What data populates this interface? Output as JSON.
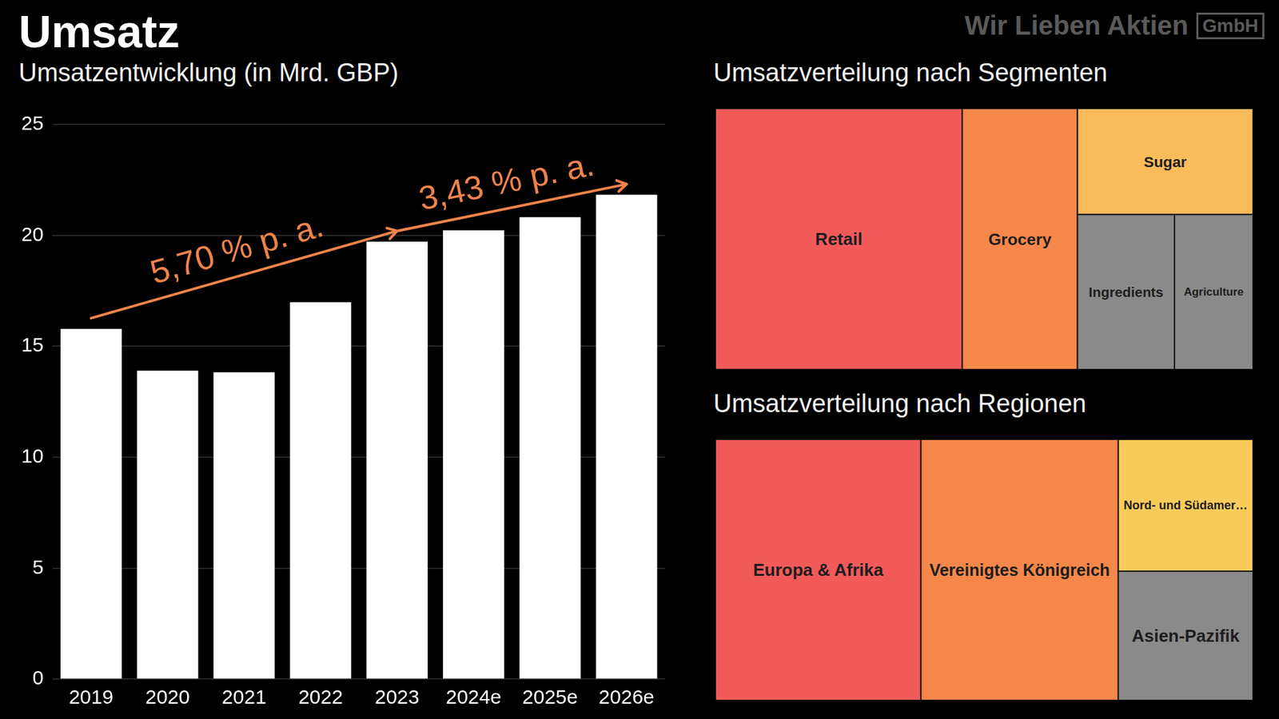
{
  "title": "Umsatz",
  "brand": {
    "name": "Wir Lieben Aktien",
    "suffix": "GmbH"
  },
  "chart_data": [
    {
      "type": "bar",
      "title": "Umsatzentwicklung (in Mrd. GBP)",
      "categories": [
        "2019",
        "2020",
        "2021",
        "2022",
        "2023",
        "2024e",
        "2025e",
        "2026e"
      ],
      "values": [
        15.79,
        13.9,
        13.83,
        16.99,
        19.72,
        20.23,
        20.82,
        21.83
      ],
      "color": "#ffffff",
      "ylim": [
        0,
        25
      ],
      "yticks": [
        0,
        5,
        10,
        15,
        20,
        25
      ],
      "grid": true,
      "annotations": [
        {
          "text": "5,70 % p. a.",
          "from": "2019",
          "to": "2023",
          "color": "#f0834a"
        },
        {
          "text": "3,43 % p. a.",
          "from": "2023",
          "to": "2026e",
          "color": "#f0834a"
        }
      ]
    },
    {
      "type": "treemap",
      "title": "Umsatzverteilung nach Segmenten",
      "categories": [
        "Retail",
        "Grocery",
        "Sugar",
        "Ingredients",
        "Agriculture"
      ],
      "values": [
        9.0,
        4.2,
        2.6,
        2.1,
        1.7
      ],
      "colors": [
        "#f25a5a",
        "#f5874a",
        "#fbbb5b",
        "#8a8a8a",
        "#8a8a8a"
      ]
    },
    {
      "type": "treemap",
      "title": "Umsatzverteilung nach Regionen",
      "categories": [
        "Europa & Afrika",
        "Vereinigtes Königreich",
        "Nord- und Südamer…",
        "Asien-Pazifik"
      ],
      "values": [
        7.55,
        7.25,
        2.5,
        2.45
      ],
      "colors": [
        "#f25a5a",
        "#f5874a",
        "#f9cb5a",
        "#8a8a8a"
      ]
    }
  ]
}
